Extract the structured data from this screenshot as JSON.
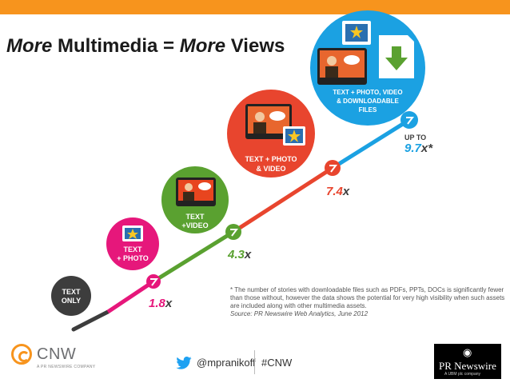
{
  "title": {
    "part1": "More",
    "part2": " Multimedia = ",
    "part3": "More",
    "part4": " Views"
  },
  "stages": [
    {
      "label_lines": [
        "TEXT",
        "ONLY"
      ],
      "color": "#3d3d3d"
    },
    {
      "label_lines": [
        "TEXT",
        "+ PHOTO"
      ],
      "color": "#e6177b",
      "value": "1.8",
      "suffix": "x"
    },
    {
      "label_lines": [
        "TEXT",
        "+VIDEO"
      ],
      "color": "#5aa130",
      "value": "4.3",
      "suffix": "x"
    },
    {
      "label_lines": [
        "TEXT + PHOTO",
        "& VIDEO"
      ],
      "color": "#e8452e",
      "value": "7.4",
      "suffix": "x"
    },
    {
      "label_lines": [
        "TEXT + PHOTO, VIDEO",
        "& DOWNLOADABLE",
        "FILES"
      ],
      "color": "#1ba1e2",
      "value_prefix": "UP TO",
      "value": "9.7",
      "suffix": "x*"
    }
  ],
  "note": {
    "text": "* The number of stories with downloadable files such as PDFs, PPTs, DOCs is significantly fewer than those without, however  the data shows the potential for very high visibility when such assets are included along with other multimedia assets.",
    "source": "Source: PR Newswire Web Analytics, June 2012"
  },
  "footer": {
    "cnw_name": "CNW",
    "cnw_sub": "A PR NEWSWIRE COMPANY",
    "twitter_handle": "@mpranikoff",
    "hashtag": "#CNW",
    "prn_name": "PR Newswire",
    "prn_sub": "A UBM plc company"
  },
  "colors": {
    "accent_orange": "#f7941d",
    "text_only": "#3d3d3d",
    "photo": "#e6177b",
    "video": "#5aa130",
    "photo_video": "#e8452e",
    "downloadable": "#1ba1e2"
  }
}
